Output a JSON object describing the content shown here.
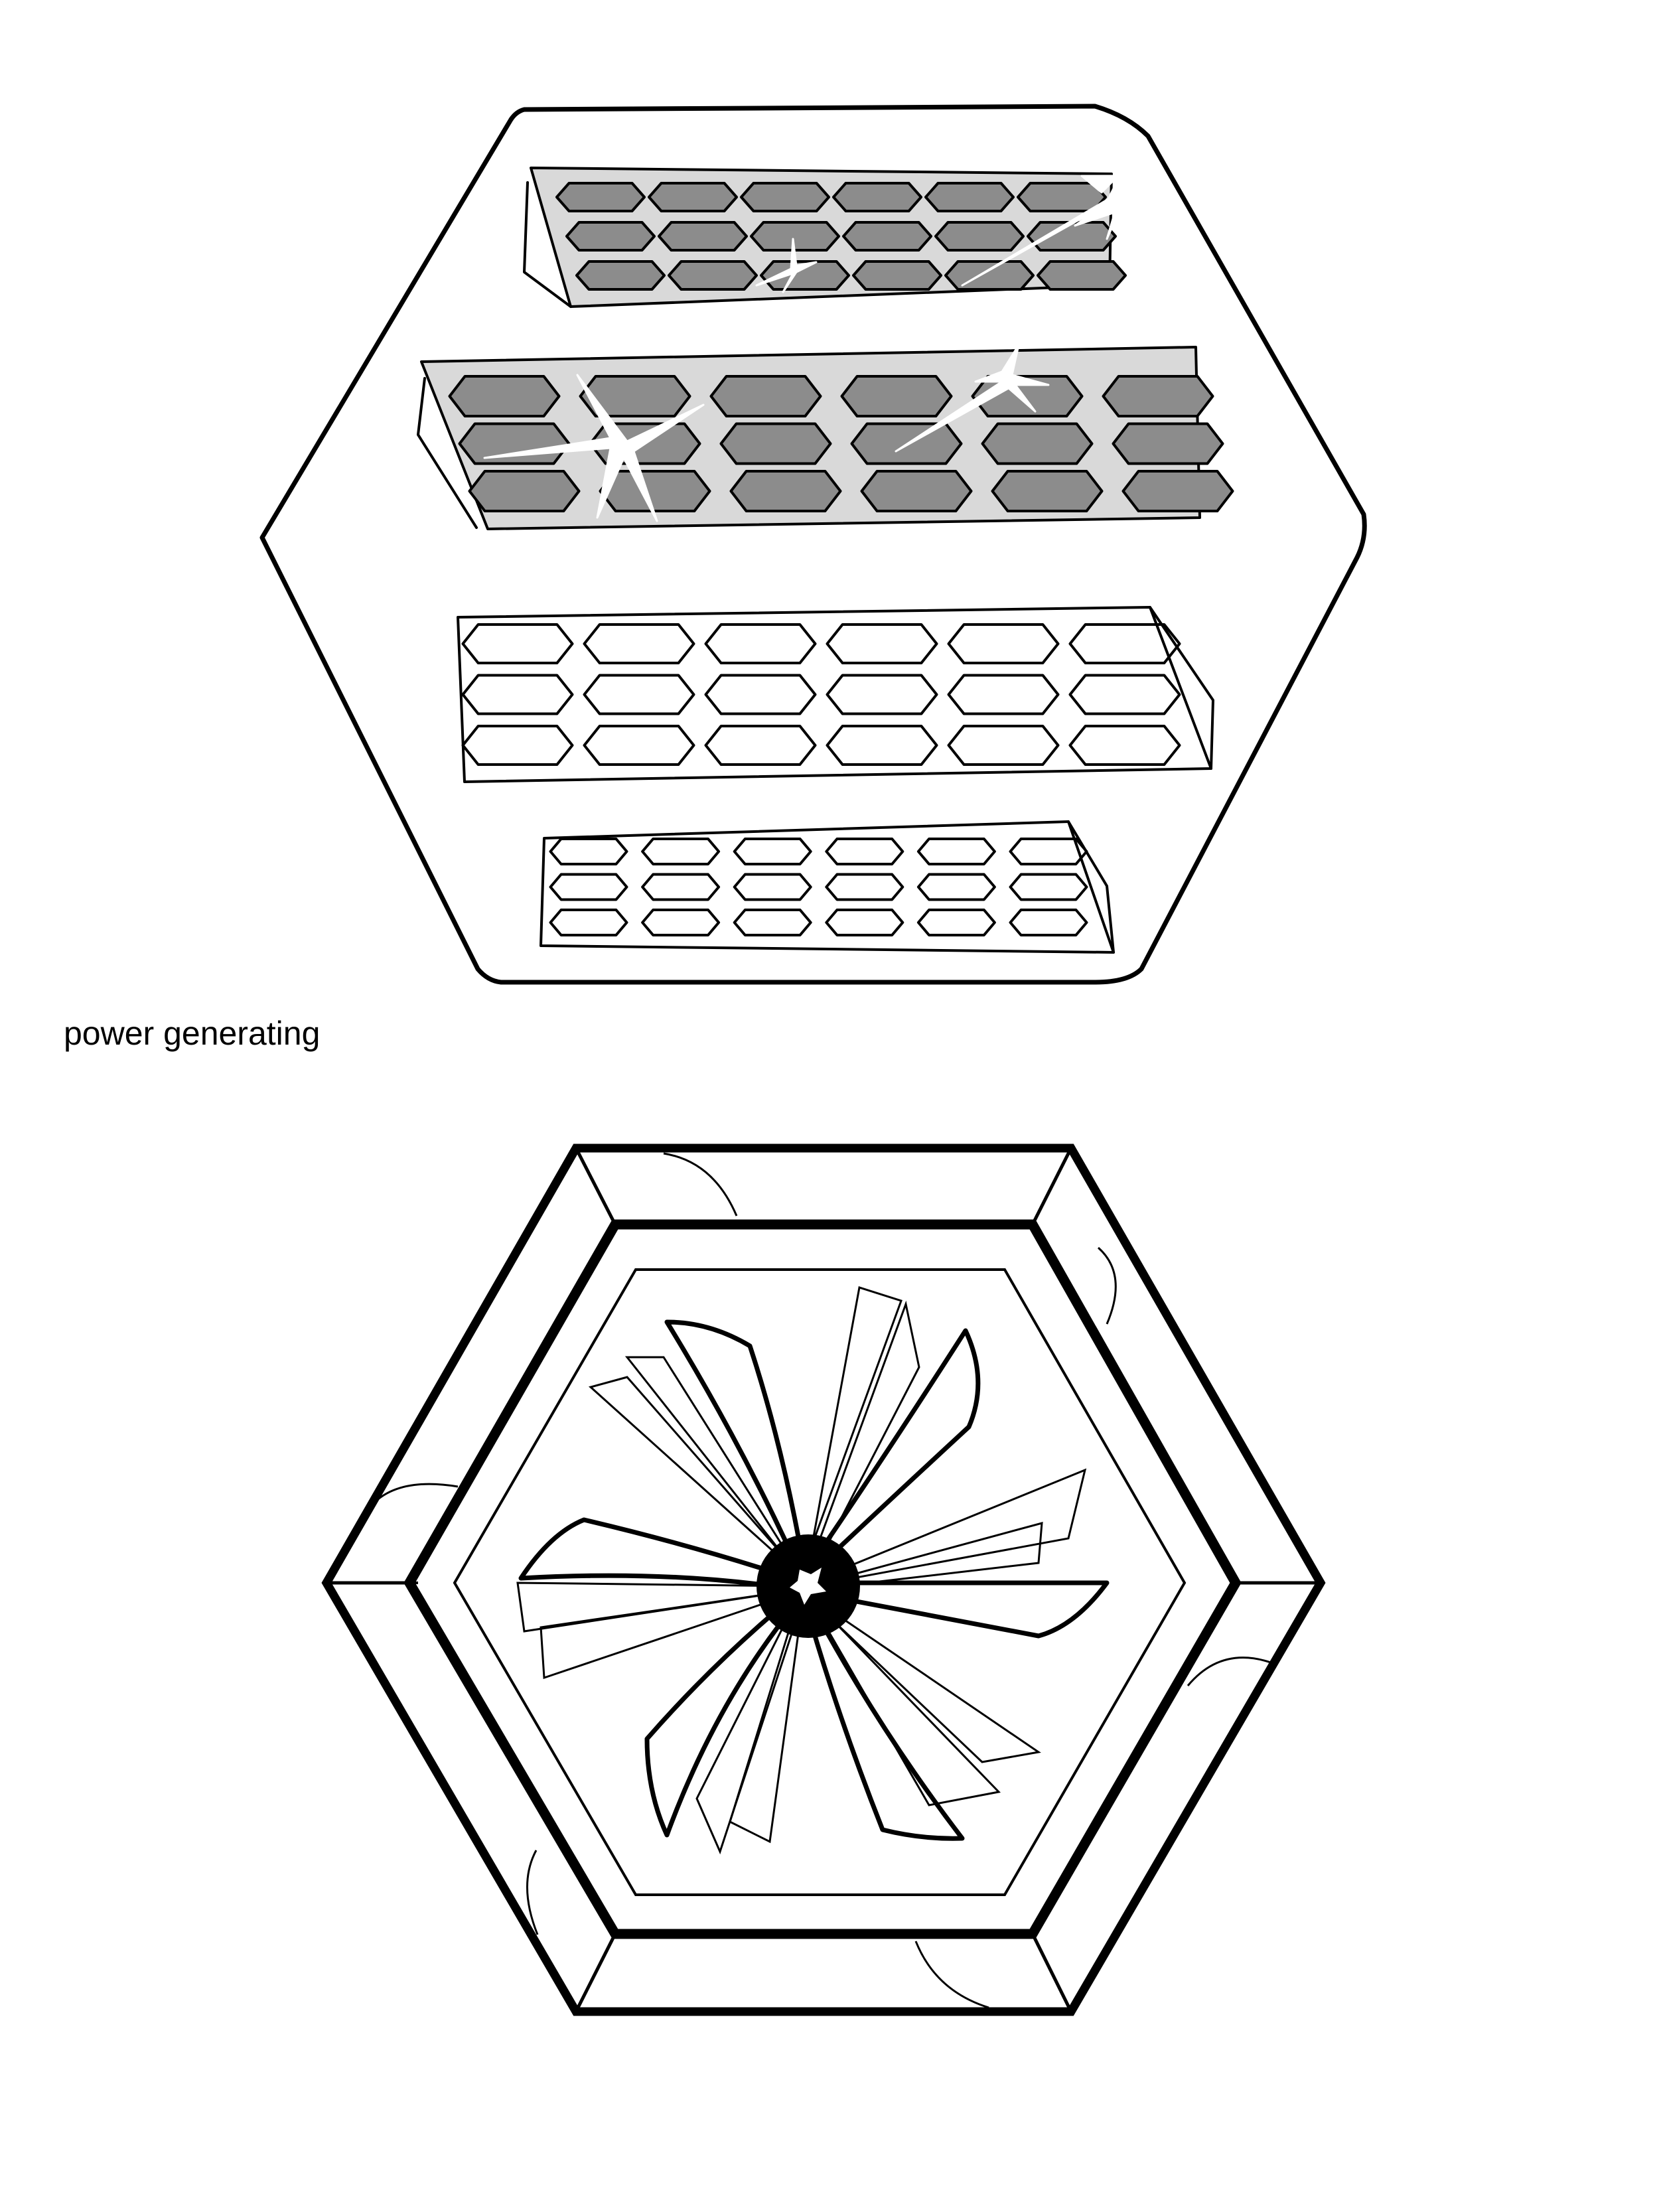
{
  "caption": "power generating",
  "colors": {
    "ink": "#000000",
    "paper": "#ffffff",
    "panel_fill": "#d9d9d9",
    "cell_fill": "#8c8c8c",
    "sparkle": "#ffffff"
  },
  "figures": {
    "top": {
      "name": "hexagon-solar-panels",
      "panel_count": 4,
      "lit_panels": 2
    },
    "bottom": {
      "name": "hexagon-wind-turbine",
      "blade_count": 6
    }
  }
}
